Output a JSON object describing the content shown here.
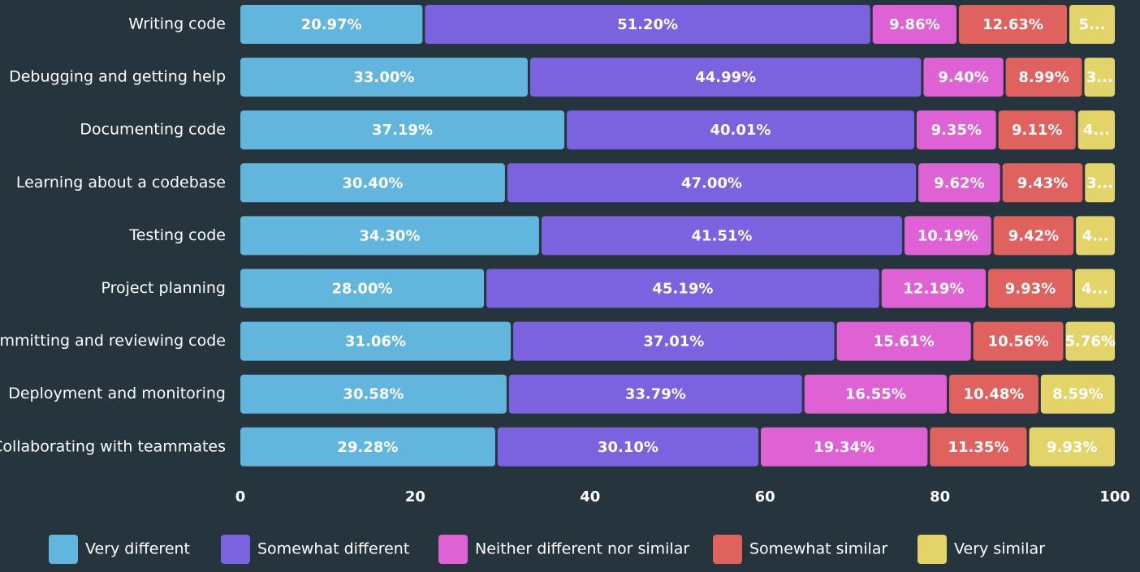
{
  "chart_data": {
    "type": "stacked-bar-horizontal",
    "categories": [
      "Writing code",
      "Debugging and getting help",
      "Documenting code",
      "Learning about a codebase",
      "Testing code",
      "Project planning",
      "Committing and reviewing code",
      "Deployment and monitoring",
      "Collaborating with teammates"
    ],
    "series": [
      {
        "name": "Very different",
        "color": "#62b6dd",
        "values": [
          20.97,
          33.0,
          37.19,
          30.4,
          34.3,
          28.0,
          31.06,
          30.58,
          29.28
        ],
        "value_labels": [
          "20.97%",
          "33.00%",
          "37.19%",
          "30.40%",
          "34.30%",
          "28.00%",
          "31.06%",
          "30.58%",
          "29.28%"
        ]
      },
      {
        "name": "Somewhat different",
        "color": "#7b62de",
        "values": [
          51.2,
          44.99,
          40.01,
          47.0,
          41.51,
          45.19,
          37.01,
          33.79,
          30.1
        ],
        "value_labels": [
          "51.20%",
          "44.99%",
          "40.01%",
          "47.00%",
          "41.51%",
          "45.19%",
          "37.01%",
          "33.79%",
          "30.10%"
        ]
      },
      {
        "name": "Neither different nor similar",
        "color": "#df62d4",
        "values": [
          9.86,
          9.4,
          9.35,
          9.62,
          10.19,
          12.19,
          15.61,
          16.55,
          19.34
        ],
        "value_labels": [
          "9.86%",
          "9.40%",
          "9.35%",
          "9.62%",
          "10.19%",
          "12.19%",
          "15.61%",
          "16.55%",
          "19.34%"
        ]
      },
      {
        "name": "Somewhat similar",
        "color": "#e0625f",
        "values": [
          12.63,
          8.99,
          9.11,
          9.43,
          9.42,
          9.93,
          10.56,
          10.48,
          11.35
        ],
        "value_labels": [
          "12.63%",
          "8.99%",
          "9.11%",
          "9.43%",
          "9.42%",
          "9.93%",
          "10.56%",
          "10.48%",
          "11.35%"
        ]
      },
      {
        "name": "Very similar",
        "color": "#e2d468",
        "values": [
          5.34,
          3.62,
          4.34,
          3.55,
          4.58,
          4.69,
          5.76,
          8.59,
          9.93
        ],
        "value_labels": [
          "5...",
          "3...",
          "4...",
          "3...",
          "4...",
          "4...",
          "5.76%",
          "8.59%",
          "9.93%"
        ]
      }
    ],
    "xlim": [
      0,
      100
    ],
    "xticks": [
      0,
      20,
      40,
      60,
      80,
      100
    ],
    "legend": "bottom"
  }
}
